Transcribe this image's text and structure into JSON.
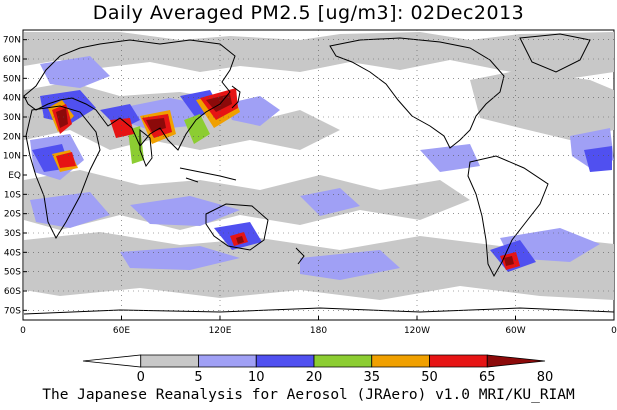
{
  "title": "Daily Averaged PM2.5 [ug/m3]: 02Dec2013",
  "footer": "The Japanese Reanalysis for Aerosol (JRAero) v1.0 MRI/KU_RIAM",
  "lat_labels": [
    "70N",
    "60N",
    "50N",
    "40N",
    "30N",
    "20N",
    "10N",
    "EQ",
    "10S",
    "20S",
    "30S",
    "40S",
    "50S",
    "60S",
    "70S"
  ],
  "lat_values": [
    70,
    60,
    50,
    40,
    30,
    20,
    10,
    0,
    -10,
    -20,
    -30,
    -40,
    -50,
    -60,
    -70
  ],
  "lon_labels": [
    "0",
    "60E",
    "120E",
    "180",
    "120W",
    "60W",
    "0"
  ],
  "lon_values": [
    0,
    60,
    120,
    180,
    240,
    300,
    360
  ],
  "colorbar": {
    "levels": [
      "0",
      "5",
      "10",
      "20",
      "35",
      "50",
      "65",
      "80"
    ],
    "colors": [
      "#ffffff",
      "#c8c8c8",
      "#a0a0f5",
      "#5050f0",
      "#8ccd32",
      "#f0a000",
      "#e61414",
      "#8c0a0a"
    ]
  },
  "colors": {
    "coast": "#000000",
    "grid": "#555555"
  }
}
